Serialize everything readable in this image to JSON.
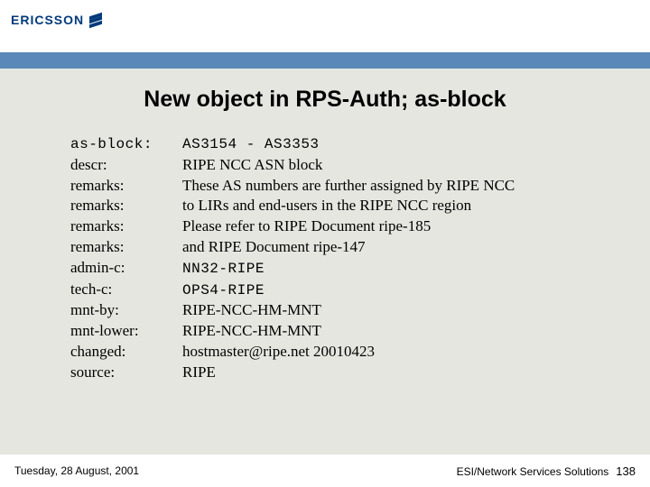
{
  "header": {
    "logo_text": "ERICSSON",
    "logo_color": "#003a7a"
  },
  "title": "New object in RPS-Auth; as-block",
  "rows": [
    {
      "label": "as-block:",
      "value": "AS3154 - AS3353",
      "value_mono": true
    },
    {
      "label": "descr:",
      "value": "RIPE NCC ASN block"
    },
    {
      "label": "remarks:",
      "value": "These AS numbers are further assigned by RIPE NCC"
    },
    {
      "label": "remarks:",
      "value": "to LIRs and end-users in the RIPE NCC region"
    },
    {
      "label": "remarks:",
      "value": "Please refer to RIPE Document ripe-185"
    },
    {
      "label": "remarks:",
      "value": "and RIPE Document ripe-147"
    },
    {
      "label": "admin-c:",
      "value": "NN32-RIPE",
      "value_mono": true
    },
    {
      "label": "tech-c:",
      "value": "OPS4-RIPE",
      "value_mono": true
    },
    {
      "label": "mnt-by:",
      "value": "RIPE-NCC-HM-MNT"
    },
    {
      "label": "mnt-lower:",
      "value": "RIPE-NCC-HM-MNT"
    },
    {
      "label": "changed:",
      "value": "hostmaster@ripe.net 20010423"
    },
    {
      "label": "source:",
      "value": "RIPE"
    }
  ],
  "footer": {
    "date": "Tuesday, 28 August, 2001",
    "org": "ESI/Network Services Solutions",
    "page": "138"
  },
  "colors": {
    "slide_bg": "#e6e6e0",
    "header_bg": "#ffffff",
    "bluebar": "#5a88b8",
    "footer_bg": "#ffffff"
  }
}
